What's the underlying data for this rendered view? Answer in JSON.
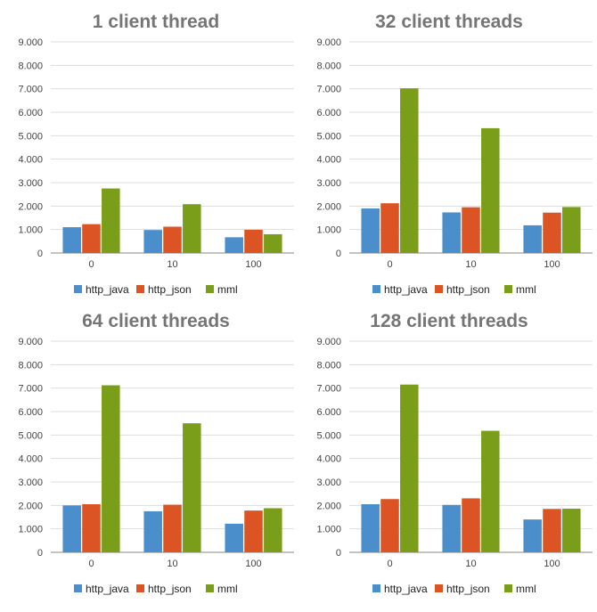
{
  "colors": {
    "http_java": "#4a8fcc",
    "http_json": "#dc5423",
    "mml": "#7a9e1a",
    "grid": "#dddddd",
    "axis": "#888888"
  },
  "chart_data": [
    {
      "type": "bar",
      "title": "1 client thread",
      "categories": [
        "0",
        "10",
        "100"
      ],
      "series": [
        {
          "name": "http_java",
          "values": [
            1100,
            980,
            670
          ]
        },
        {
          "name": "http_json",
          "values": [
            1230,
            1120,
            990
          ]
        },
        {
          "name": "mml",
          "values": [
            2750,
            2080,
            800
          ]
        }
      ],
      "xlabel": "",
      "ylabel": "",
      "ylim": [
        0,
        9000
      ],
      "yticks": [
        "0",
        "1.000",
        "2.000",
        "3.000",
        "4.000",
        "5.000",
        "6.000",
        "7.000",
        "8.000",
        "9.000"
      ],
      "grid": true,
      "legend": "bottom"
    },
    {
      "type": "bar",
      "title": "32 client threads",
      "categories": [
        "0",
        "10",
        "100"
      ],
      "series": [
        {
          "name": "http_java",
          "values": [
            1900,
            1730,
            1180
          ]
        },
        {
          "name": "http_json",
          "values": [
            2120,
            1950,
            1720
          ]
        },
        {
          "name": "mml",
          "values": [
            7020,
            5320,
            1960
          ]
        }
      ],
      "xlabel": "",
      "ylabel": "",
      "ylim": [
        0,
        9000
      ],
      "yticks": [
        "0",
        "1.000",
        "2.000",
        "3.000",
        "4.000",
        "5.000",
        "6.000",
        "7.000",
        "8.000",
        "9.000"
      ],
      "grid": true,
      "legend": "bottom"
    },
    {
      "type": "bar",
      "title": "64 client threads",
      "categories": [
        "0",
        "10",
        "100"
      ],
      "series": [
        {
          "name": "http_java",
          "values": [
            2000,
            1750,
            1220
          ]
        },
        {
          "name": "http_json",
          "values": [
            2050,
            2030,
            1780
          ]
        },
        {
          "name": "mml",
          "values": [
            7120,
            5500,
            1880
          ]
        }
      ],
      "xlabel": "",
      "ylabel": "",
      "ylim": [
        0,
        9000
      ],
      "yticks": [
        "0",
        "1.000",
        "2.000",
        "3.000",
        "4.000",
        "5.000",
        "6.000",
        "7.000",
        "8.000",
        "9.000"
      ],
      "grid": true,
      "legend": "bottom"
    },
    {
      "type": "bar",
      "title": "128 client threads",
      "categories": [
        "0",
        "10",
        "100"
      ],
      "series": [
        {
          "name": "http_java",
          "values": [
            2050,
            2020,
            1400
          ]
        },
        {
          "name": "http_json",
          "values": [
            2270,
            2300,
            1850
          ]
        },
        {
          "name": "mml",
          "values": [
            7150,
            5180,
            1860
          ]
        }
      ],
      "xlabel": "",
      "ylabel": "",
      "ylim": [
        0,
        9000
      ],
      "yticks": [
        "0",
        "1.000",
        "2.000",
        "3.000",
        "4.000",
        "5.000",
        "6.000",
        "7.000",
        "8.000",
        "9.000"
      ],
      "grid": true,
      "legend": "bottom"
    }
  ]
}
